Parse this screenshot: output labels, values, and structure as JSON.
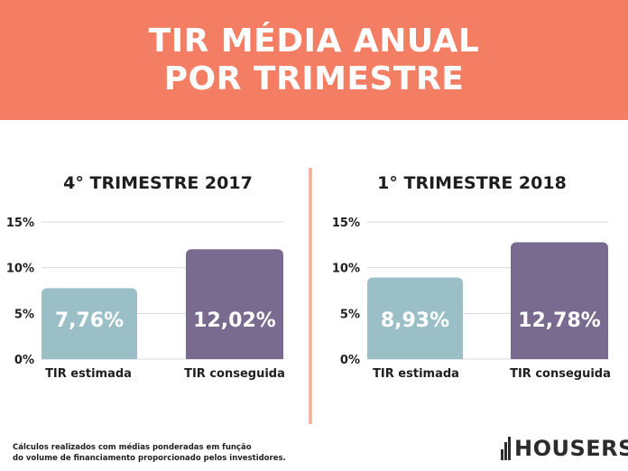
{
  "header": {
    "title_line1": "TIR MÉDIA ANUAL",
    "title_line2": "POR TRIMESTRE"
  },
  "colors": {
    "header_bg": "#f47e64",
    "bar_estimated": "#9bbfc7",
    "bar_achieved": "#786b8f",
    "divider": "#f2b6a3",
    "grid": "#d9d9d9"
  },
  "chart_data": [
    {
      "type": "bar",
      "title": "4° TRIMESTRE 2017",
      "categories": [
        "TIR estimada",
        "TIR conseguida"
      ],
      "values": [
        7.76,
        12.02
      ],
      "value_labels": [
        "7,76%",
        "12,02%"
      ],
      "yticks": [
        "0%",
        "5%",
        "10%",
        "15%"
      ],
      "ylim": [
        0,
        15
      ],
      "grid": true
    },
    {
      "type": "bar",
      "title": "1° TRIMESTRE 2018",
      "categories": [
        "TIR estimada",
        "TIR conseguida"
      ],
      "values": [
        8.93,
        12.78
      ],
      "value_labels": [
        "8,93%",
        "12,78%"
      ],
      "yticks": [
        "0%",
        "5%",
        "10%",
        "15%"
      ],
      "ylim": [
        0,
        15
      ],
      "grid": true
    }
  ],
  "footnote": {
    "line1": "Cálculos realizados com médias ponderadas em função",
    "line2": "do volume de financiamento proporcionado pelos investidores."
  },
  "logo": {
    "text": "HOUSERS",
    "icon": "housers-logo-icon"
  }
}
